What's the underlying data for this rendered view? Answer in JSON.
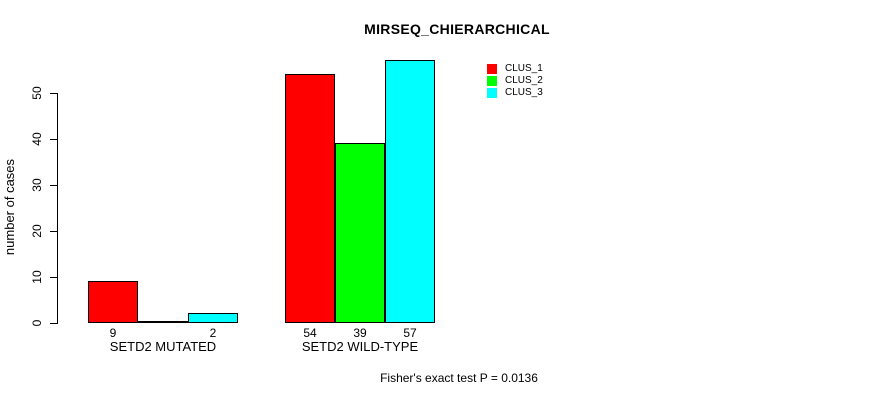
{
  "figure": {
    "background": "#ffffff",
    "text_color": "#000000"
  },
  "chart_data": {
    "type": "bar",
    "title": "MIRSEQ_CHIERARCHICAL",
    "ylabel": "number of cases",
    "xlabel": "",
    "categories": [
      "SETD2 MUTATED",
      "SETD2 WILD-TYPE"
    ],
    "series": [
      {
        "name": "CLUS_1",
        "color": "#FF0000",
        "values": [
          9,
          54
        ]
      },
      {
        "name": "CLUS_2",
        "color": "#00FF00",
        "values": [
          0,
          39
        ]
      },
      {
        "name": "CLUS_3",
        "color": "#00FFFF",
        "values": [
          2,
          57
        ]
      }
    ],
    "bar_value_labels": [
      [
        "9",
        "",
        "2"
      ],
      [
        "54",
        "39",
        "57"
      ]
    ],
    "yticks": [
      0,
      10,
      20,
      30,
      40,
      50
    ],
    "ylim": [
      0,
      57
    ],
    "grid": false,
    "bar_border_color": "#000000",
    "legend_position": "top-right",
    "legend_entries": [
      "CLUS_1",
      "CLUS_2",
      "CLUS_3"
    ],
    "annotation": "Fisher's exact test P = 0.0136"
  }
}
